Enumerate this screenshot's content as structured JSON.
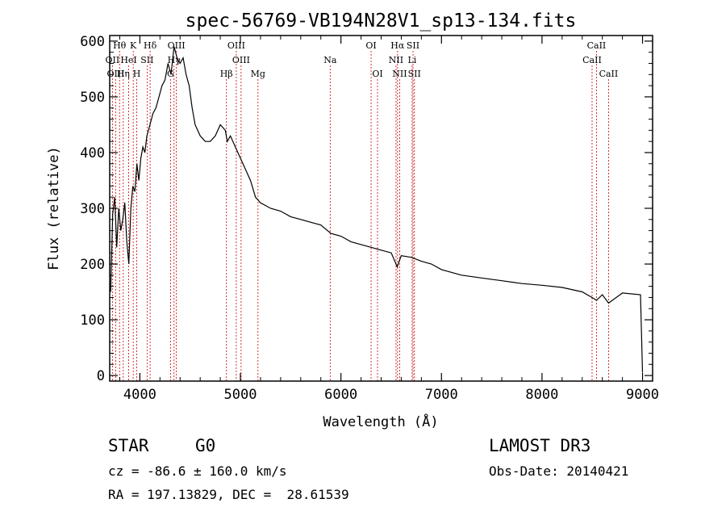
{
  "chart_data": {
    "type": "line",
    "title": "spec-56769-VB194N28V1_sp13-134.fits",
    "xlabel": "Wavelength (Å)",
    "ylabel": "Flux (relative)",
    "xlim": [
      3700,
      9100
    ],
    "ylim": [
      -10,
      610
    ],
    "xticks": [
      4000,
      5000,
      6000,
      7000,
      8000,
      9000
    ],
    "yticks": [
      0,
      100,
      200,
      300,
      400,
      500,
      600
    ],
    "grid": false,
    "series": [
      {
        "name": "flux",
        "x": [
          3710,
          3730,
          3750,
          3770,
          3790,
          3810,
          3830,
          3850,
          3870,
          3890,
          3910,
          3930,
          3950,
          3970,
          3990,
          4010,
          4030,
          4050,
          4070,
          4100,
          4130,
          4160,
          4190,
          4220,
          4250,
          4280,
          4310,
          4340,
          4370,
          4400,
          4430,
          4460,
          4490,
          4520,
          4550,
          4600,
          4650,
          4700,
          4750,
          4800,
          4850,
          4870,
          4900,
          4950,
          5000,
          5050,
          5100,
          5150,
          5200,
          5300,
          5400,
          5500,
          5600,
          5700,
          5800,
          5900,
          6000,
          6100,
          6200,
          6300,
          6400,
          6500,
          6560,
          6600,
          6700,
          6800,
          6900,
          7000,
          7200,
          7400,
          7600,
          7800,
          8000,
          8200,
          8400,
          8498,
          8542,
          8600,
          8662,
          8800,
          8980,
          9000
        ],
        "y": [
          150,
          290,
          320,
          230,
          300,
          260,
          280,
          310,
          240,
          200,
          300,
          340,
          330,
          380,
          350,
          390,
          410,
          400,
          430,
          450,
          470,
          480,
          500,
          520,
          530,
          560,
          540,
          590,
          570,
          560,
          570,
          540,
          520,
          480,
          450,
          430,
          420,
          420,
          430,
          450,
          440,
          420,
          430,
          410,
          390,
          370,
          350,
          320,
          310,
          300,
          295,
          285,
          280,
          275,
          270,
          255,
          250,
          240,
          235,
          230,
          225,
          220,
          195,
          215,
          212,
          205,
          200,
          190,
          180,
          175,
          170,
          165,
          162,
          158,
          150,
          140,
          135,
          145,
          130,
          148,
          145,
          5
        ]
      }
    ],
    "lines": [
      {
        "name": "Hθ",
        "wl": 3798,
        "row": 0
      },
      {
        "name": "OII",
        "wl": 3727,
        "row": 1
      },
      {
        "name": "OIII",
        "wl": 3760,
        "row": 2
      },
      {
        "name": "K",
        "wl": 3934,
        "row": 0
      },
      {
        "name": "HeI",
        "wl": 3889,
        "row": 1
      },
      {
        "name": "Hη",
        "wl": 3835,
        "row": 2
      },
      {
        "name": "SII",
        "wl": 4072,
        "row": 1
      },
      {
        "name": "H",
        "wl": 3969,
        "row": 2
      },
      {
        "name": "Hδ",
        "wl": 4102,
        "row": 0
      },
      {
        "name": "OIII",
        "wl": 4363,
        "row": 0
      },
      {
        "name": "Hγ",
        "wl": 4340,
        "row": 1
      },
      {
        "name": "G",
        "wl": 4305,
        "row": 2
      },
      {
        "name": "OIII",
        "wl": 4959,
        "row": 0
      },
      {
        "name": "OIII",
        "wl": 5007,
        "row": 1
      },
      {
        "name": "Hβ",
        "wl": 4861,
        "row": 2
      },
      {
        "name": "Mg",
        "wl": 5175,
        "row": 2
      },
      {
        "name": "Na",
        "wl": 5893,
        "row": 1
      },
      {
        "name": "OI",
        "wl": 6300,
        "row": 0
      },
      {
        "name": "OI",
        "wl": 6364,
        "row": 2
      },
      {
        "name": "Hα",
        "wl": 6563,
        "row": 0
      },
      {
        "name": "NII",
        "wl": 6548,
        "row": 1
      },
      {
        "name": "NII",
        "wl": 6584,
        "row": 2
      },
      {
        "name": "SII",
        "wl": 6717,
        "row": 0
      },
      {
        "name": "Li",
        "wl": 6708,
        "row": 1
      },
      {
        "name": "SII",
        "wl": 6731,
        "row": 2
      },
      {
        "name": "CaII",
        "wl": 8542,
        "row": 0
      },
      {
        "name": "CaII",
        "wl": 8498,
        "row": 1
      },
      {
        "name": "CaII",
        "wl": 8662,
        "row": 2
      }
    ]
  },
  "info": {
    "object_type": "STAR",
    "subclass": "G0",
    "survey": "LAMOST DR3",
    "redshift_line": "cz = -86.6 ± 160.0 km/s",
    "obs_date": "Obs-Date: 20140421",
    "coords": "RA = 197.13829, DEC =  28.61539"
  },
  "colors": {
    "axis": "#000000",
    "spectrum": "#000000",
    "line_marker": "#cc0000"
  }
}
